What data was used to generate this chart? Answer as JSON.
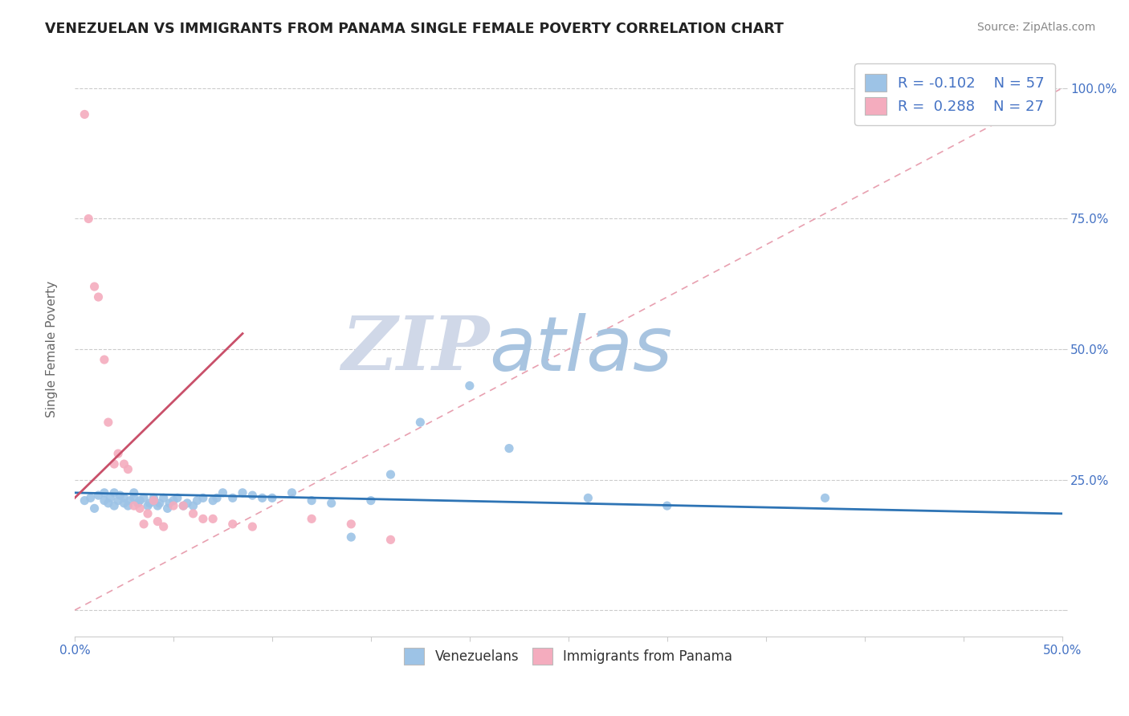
{
  "title": "VENEZUELAN VS IMMIGRANTS FROM PANAMA SINGLE FEMALE POVERTY CORRELATION CHART",
  "source": "Source: ZipAtlas.com",
  "ylabel": "Single Female Poverty",
  "xlabel": "",
  "xlim": [
    0.0,
    0.5
  ],
  "ylim": [
    -0.05,
    1.05
  ],
  "xticks": [
    0.0,
    0.05,
    0.1,
    0.15,
    0.2,
    0.25,
    0.3,
    0.35,
    0.4,
    0.45,
    0.5
  ],
  "xtick_labels": [
    "0.0%",
    "",
    "",
    "",
    "",
    "",
    "",
    "",
    "",
    "",
    "50.0%"
  ],
  "ytick_labels": [
    "",
    "25.0%",
    "50.0%",
    "75.0%",
    "100.0%"
  ],
  "yticks": [
    0.0,
    0.25,
    0.5,
    0.75,
    1.0
  ],
  "blue_color": "#9dc3e6",
  "pink_color": "#f4acbe",
  "blue_line_color": "#2e74b5",
  "pink_line_color": "#c9506a",
  "diag_line_color": "#f4acbe",
  "watermark_zip_color": "#d0d8e8",
  "watermark_atlas_color": "#a8c4e0",
  "venezuelans_x": [
    0.005,
    0.008,
    0.01,
    0.012,
    0.015,
    0.015,
    0.017,
    0.018,
    0.02,
    0.02,
    0.022,
    0.023,
    0.025,
    0.025,
    0.027,
    0.028,
    0.03,
    0.03,
    0.032,
    0.033,
    0.035,
    0.037,
    0.038,
    0.04,
    0.04,
    0.042,
    0.043,
    0.045,
    0.047,
    0.048,
    0.05,
    0.052,
    0.055,
    0.057,
    0.06,
    0.062,
    0.065,
    0.07,
    0.072,
    0.075,
    0.08,
    0.085,
    0.09,
    0.095,
    0.1,
    0.11,
    0.12,
    0.13,
    0.14,
    0.15,
    0.16,
    0.175,
    0.2,
    0.22,
    0.26,
    0.3,
    0.38
  ],
  "venezuelans_y": [
    0.21,
    0.215,
    0.195,
    0.22,
    0.225,
    0.21,
    0.205,
    0.215,
    0.225,
    0.2,
    0.21,
    0.22,
    0.205,
    0.215,
    0.2,
    0.21,
    0.215,
    0.225,
    0.205,
    0.21,
    0.215,
    0.2,
    0.205,
    0.21,
    0.215,
    0.2,
    0.205,
    0.215,
    0.195,
    0.205,
    0.21,
    0.215,
    0.2,
    0.205,
    0.2,
    0.21,
    0.215,
    0.21,
    0.215,
    0.225,
    0.215,
    0.225,
    0.22,
    0.215,
    0.215,
    0.225,
    0.21,
    0.205,
    0.14,
    0.21,
    0.26,
    0.36,
    0.43,
    0.31,
    0.215,
    0.2,
    0.215
  ],
  "panama_x": [
    0.005,
    0.007,
    0.01,
    0.012,
    0.015,
    0.017,
    0.02,
    0.022,
    0.025,
    0.027,
    0.03,
    0.033,
    0.035,
    0.037,
    0.04,
    0.042,
    0.045,
    0.05,
    0.055,
    0.06,
    0.065,
    0.07,
    0.08,
    0.09,
    0.12,
    0.14,
    0.16
  ],
  "panama_y": [
    0.95,
    0.75,
    0.62,
    0.6,
    0.48,
    0.36,
    0.28,
    0.3,
    0.28,
    0.27,
    0.2,
    0.195,
    0.165,
    0.185,
    0.21,
    0.17,
    0.16,
    0.2,
    0.2,
    0.185,
    0.175,
    0.175,
    0.165,
    0.16,
    0.175,
    0.165,
    0.135
  ],
  "blue_trend_x": [
    0.0,
    0.5
  ],
  "blue_trend_y": [
    0.225,
    0.185
  ],
  "pink_trend_x": [
    0.0,
    0.085
  ],
  "pink_trend_y": [
    0.215,
    0.53
  ]
}
